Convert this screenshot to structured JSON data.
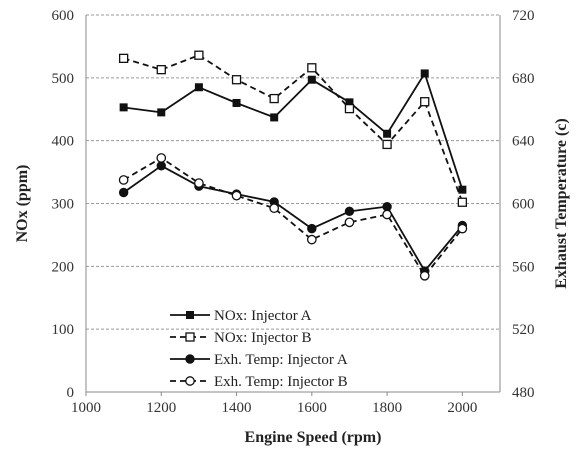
{
  "chart_data": {
    "type": "line",
    "x": [
      1100,
      1200,
      1300,
      1400,
      1500,
      1600,
      1700,
      1800,
      1900,
      2000
    ],
    "xlabel": "Engine Speed (rpm)",
    "ylabel": "NOx (ppm)",
    "y2label": "Exhaust Temperature (c)",
    "xlim": [
      1000,
      2100
    ],
    "ylim": [
      0,
      600
    ],
    "y2lim": [
      480,
      720
    ],
    "xticks": [
      "1000",
      "1200",
      "1400",
      "1600",
      "1800",
      "2000"
    ],
    "yticks": [
      "0",
      "100",
      "200",
      "300",
      "400",
      "500",
      "600"
    ],
    "y2ticks": [
      "480",
      "520",
      "560",
      "600",
      "640",
      "680",
      "720"
    ],
    "grid": "horizontal dashed",
    "legend_position": "bottom-center",
    "series": [
      {
        "name": "NOx: Injector A",
        "axis": "left",
        "line": "solid",
        "marker": "filled-square",
        "values": [
          453,
          445,
          485,
          460,
          437,
          497,
          461,
          411,
          507,
          322
        ]
      },
      {
        "name": "NOx: Injector B",
        "axis": "left",
        "line": "dashed",
        "marker": "open-square",
        "values": [
          531,
          513,
          536,
          497,
          467,
          516,
          451,
          394,
          462,
          302
        ]
      },
      {
        "name": "Exh. Temp: Injector A",
        "axis": "right",
        "line": "solid",
        "marker": "filled-circle",
        "values": [
          607,
          624,
          611,
          606,
          601,
          584,
          595,
          598,
          557,
          586
        ]
      },
      {
        "name": "Exh. Temp: Injector B",
        "axis": "right",
        "line": "dashed",
        "marker": "open-circle",
        "values": [
          615,
          629,
          613,
          605,
          597,
          577,
          588,
          593,
          554,
          584
        ]
      }
    ]
  }
}
